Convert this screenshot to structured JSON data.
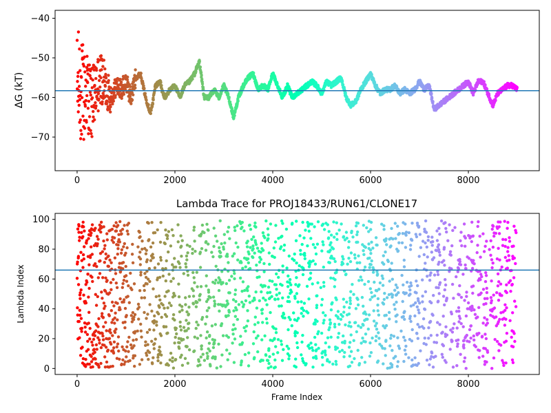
{
  "chart_data": [
    {
      "type": "scatter",
      "title": "",
      "xlabel": "",
      "ylabel": "ΔG (kT)",
      "xlim": [
        -450,
        9450
      ],
      "ylim": [
        -78.5,
        -38
      ],
      "xticks": [
        0,
        2000,
        4000,
        6000,
        8000
      ],
      "yticks": [
        -40,
        -50,
        -60,
        -70
      ],
      "hline": -58.3,
      "colormap": "rainbow (red → violet with increasing frame index)",
      "n_frames": 9000,
      "series": [
        {
          "x": [
            0,
            50,
            100,
            200,
            300,
            400,
            500,
            600,
            700,
            800,
            900,
            1000,
            1100,
            1200,
            1300,
            1400,
            1500,
            1550,
            1600,
            1700,
            1750,
            1800,
            1900,
            2000,
            2100,
            2200,
            2300,
            2400,
            2500,
            2600,
            2700,
            2800,
            2900,
            3000,
            3100,
            3200,
            3300,
            3400,
            3500,
            3600,
            3700,
            3800,
            3900,
            4000,
            4100,
            4200,
            4300,
            4400,
            4500,
            4600,
            4700,
            4800,
            4900,
            5000,
            5100,
            5200,
            5300,
            5400,
            5500,
            5600,
            5700,
            5800,
            5900,
            6000,
            6100,
            6200,
            6300,
            6400,
            6500,
            6600,
            6700,
            6800,
            6900,
            7000,
            7100,
            7200,
            7300,
            7400,
            7500,
            7600,
            7700,
            7800,
            7900,
            8000,
            8100,
            8200,
            8300,
            8400,
            8500,
            8600,
            8700,
            8800,
            8900,
            9000
          ],
          "y": [
            -58,
            -56,
            -60,
            -58,
            -62,
            -57,
            -55,
            -58,
            -60,
            -57,
            -58,
            -56,
            -60,
            -55,
            -54,
            -60,
            -64,
            -61,
            -57,
            -56,
            -59,
            -60,
            -58,
            -57,
            -60,
            -57,
            -56,
            -54,
            -51,
            -60,
            -60,
            -58,
            -60,
            -57,
            -60,
            -65,
            -60,
            -57,
            -55,
            -54,
            -58,
            -57,
            -58,
            -54,
            -57,
            -60,
            -57,
            -60,
            -59,
            -58,
            -57,
            -56,
            -57,
            -59,
            -56,
            -57,
            -56,
            -55,
            -60,
            -62,
            -61,
            -58,
            -56,
            -54,
            -57,
            -59,
            -58,
            -58,
            -57,
            -59,
            -58,
            -59,
            -58,
            -56,
            -58,
            -57,
            -63,
            -62,
            -61,
            -60,
            -59,
            -58,
            -57,
            -56,
            -59,
            -56,
            -56,
            -59,
            -62,
            -59,
            -58,
            -57,
            -57,
            -58
          ]
        }
      ]
    },
    {
      "type": "scatter",
      "title": "Lambda Trace for PROJ18433/RUN61/CLONE17",
      "xlabel": "Frame Index",
      "ylabel": "Lambda Index",
      "xlim": [
        -450,
        9450
      ],
      "ylim": [
        -4,
        104
      ],
      "xticks": [
        0,
        2000,
        4000,
        6000,
        8000
      ],
      "yticks": [
        0,
        20,
        40,
        60,
        80,
        100
      ],
      "hline": 66,
      "colormap": "rainbow (red → violet with increasing frame index)",
      "n_frames": 9000,
      "value_range": [
        0,
        99
      ],
      "series": [
        {
          "x": [
            0,
            100,
            500,
            1000,
            1500,
            2000,
            2500,
            3000,
            3500,
            4000,
            4500,
            5000,
            5500,
            6000,
            6500,
            7000,
            7500,
            8000,
            8500,
            9000
          ],
          "y": [
            20,
            50,
            30,
            60,
            10,
            40,
            20,
            70,
            30,
            50,
            90,
            20,
            40,
            10,
            60,
            80,
            30,
            90,
            20,
            20
          ]
        }
      ]
    }
  ]
}
